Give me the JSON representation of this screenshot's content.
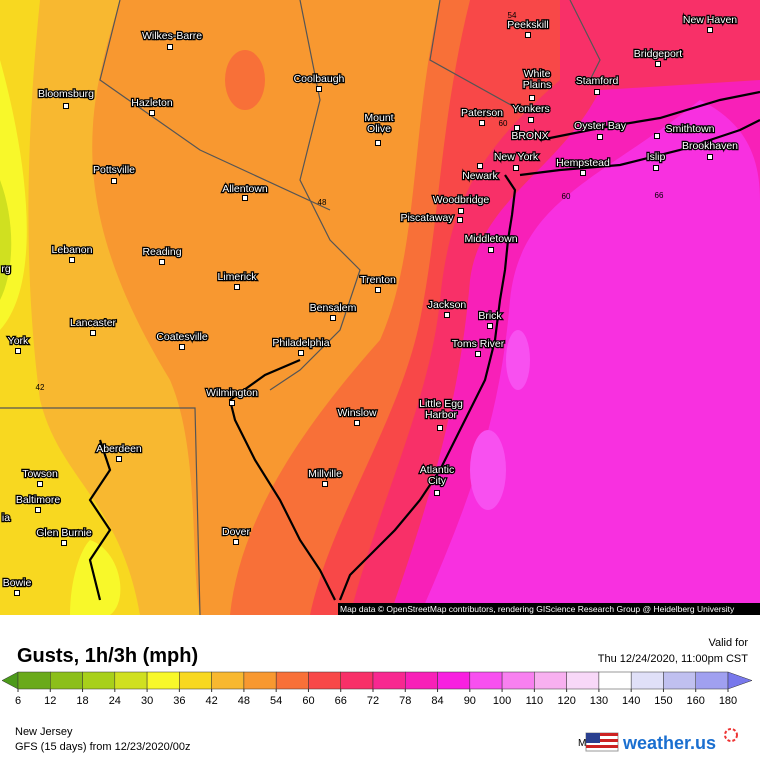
{
  "header": {
    "title": "Gusts, 1h/3h (mph)",
    "valid_label": "Valid for",
    "valid_time": "Thu 12/24/2020, 11:00pm CST"
  },
  "footer": {
    "region": "New Jersey",
    "model_run": "GFS (15 days) from 12/23/2020/00z",
    "model_label": "Model:",
    "brand": "weather.us"
  },
  "attribution": "Map data © OpenStreetMap contributors, rendering GIScience Research Group @ Heidelberg University",
  "cities": [
    "Wilkes-Barre",
    "Bloomsburg",
    "Hazleton",
    "Coolbaugh",
    "Mount Olive",
    "Pottsville",
    "Allentown",
    "Lebanon",
    "Reading",
    "Limerick",
    "Lancaster",
    "Coatesville",
    "Bensalem",
    "Philadelphia",
    "Trenton",
    "Wilmington",
    "Winslow",
    "Millville",
    "Dover",
    "Aberdeen",
    "Towson",
    "Baltimore",
    "Glen Burnie",
    "Bowie",
    "York",
    "Peekskill",
    "New Haven",
    "Bridgeport",
    "White Plains",
    "Stamford",
    "Paterson",
    "Yonkers",
    "BRONX",
    "Oyster Bay",
    "Smithtown",
    "New York",
    "Brookhaven",
    "Hempstead",
    "Islip",
    "Newark",
    "Woodbridge",
    "Piscataway",
    "Middletown",
    "Jackson",
    "Brick",
    "Toms River",
    "Little Egg Harbor",
    "Atlantic City",
    "rg",
    "ia"
  ],
  "contour_labels": [
    "54",
    "60",
    "48",
    "42",
    "66",
    "60"
  ],
  "legend": {
    "ticks": [
      6,
      12,
      18,
      24,
      30,
      36,
      42,
      48,
      54,
      60,
      66,
      72,
      78,
      84,
      90,
      100,
      110,
      120,
      130,
      140,
      150,
      160,
      180
    ],
    "colors": [
      "#4c9a1a",
      "#6aaa1a",
      "#8cbf1a",
      "#a8d01a",
      "#d0e020",
      "#f8f82a",
      "#f8d820",
      "#f8b830",
      "#f89830",
      "#f87038",
      "#f84848",
      "#f83068",
      "#f82890",
      "#f820b8",
      "#f820e0",
      "#f850f0",
      "#f880f0",
      "#f8b0f0",
      "#f8d8f8",
      "#ffffff",
      "#e0e0f8",
      "#c0c0f0",
      "#a0a0f0",
      "#7878ec"
    ]
  }
}
